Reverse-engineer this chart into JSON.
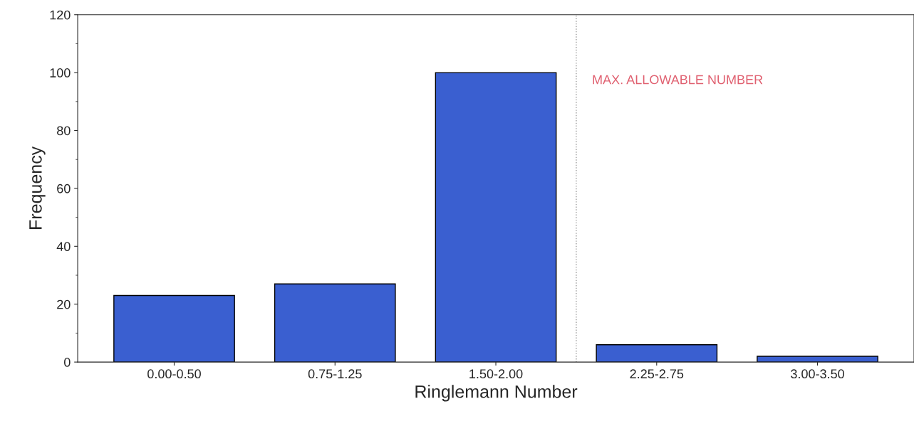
{
  "chart_data": {
    "type": "bar",
    "xlabel": "Ringlemann Number",
    "ylabel": "Frequency",
    "categories": [
      "0.00-0.50",
      "0.75-1.25",
      "1.50-2.00",
      "2.25-2.75",
      "3.00-3.50"
    ],
    "values": [
      23,
      27,
      100,
      6,
      2
    ],
    "color": "#3a5fd0",
    "ylim": [
      0,
      120
    ],
    "yticks": [
      0,
      20,
      40,
      60,
      80,
      100,
      120
    ],
    "grid": false,
    "legend": false,
    "annotations": [
      "MAX. ALLOWABLE NUMBER"
    ]
  }
}
